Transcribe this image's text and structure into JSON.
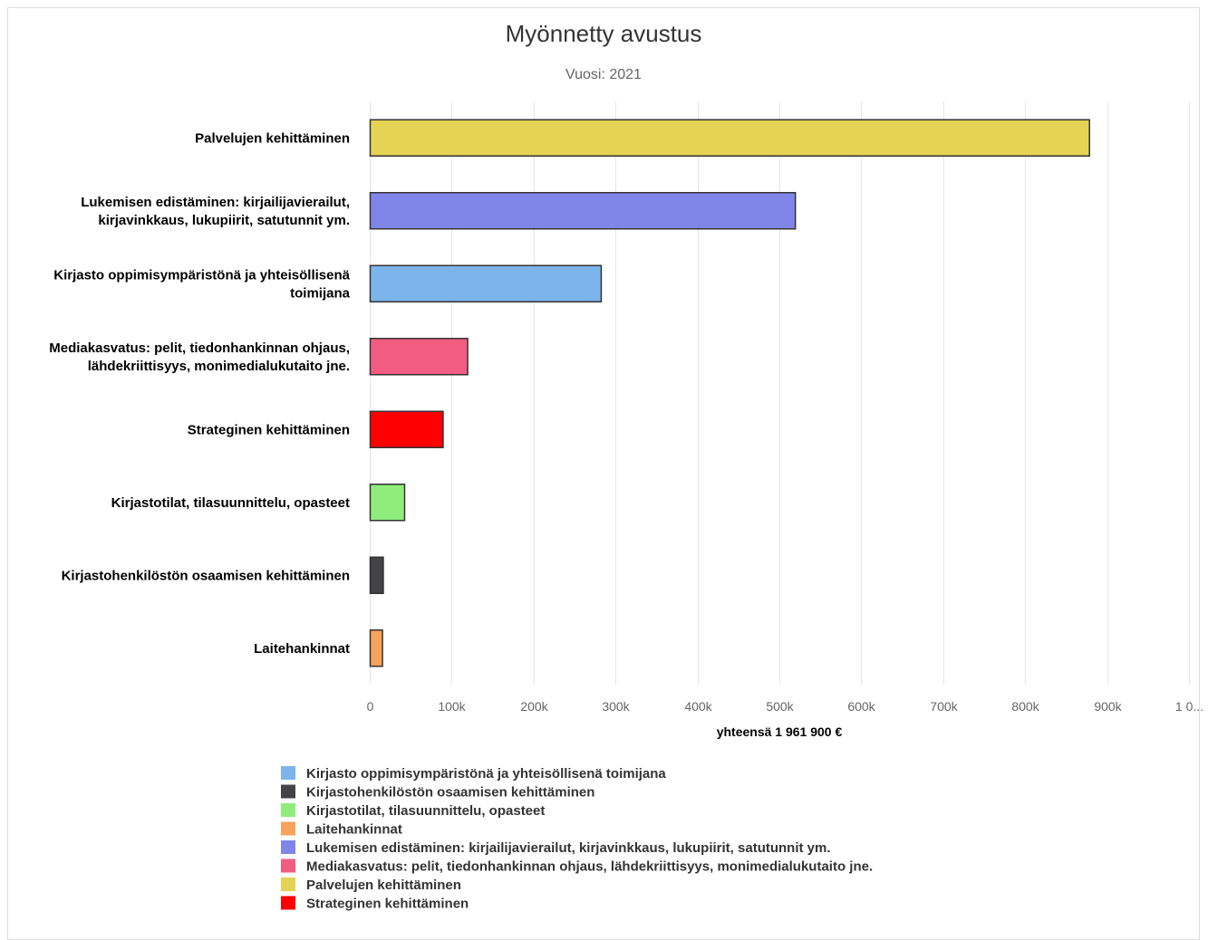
{
  "chart_data": {
    "type": "bar",
    "orientation": "horizontal",
    "title": "Myönnetty avustus",
    "subtitle": "Vuosi: 2021",
    "xlabel": "yhteensä 1 961 900 €",
    "xlim": [
      0,
      1000000
    ],
    "x_ticks": [
      "0",
      "100k",
      "200k",
      "300k",
      "400k",
      "500k",
      "600k",
      "700k",
      "800k",
      "900k",
      "1 0..."
    ],
    "grid": true,
    "legend_position": "bottom",
    "bars": [
      {
        "label": [
          "Palvelujen kehittäminen"
        ],
        "value": 878000,
        "color": "#e4d354"
      },
      {
        "label": [
          "Lukemisen edistäminen: kirjailijavierailut,",
          "kirjavinkkaus, lukupiirit, satutunnit ym."
        ],
        "value": 519000,
        "color": "#8085e9"
      },
      {
        "label": [
          "Kirjasto oppimisympäristönä ja yhteisöllisenä",
          "toimijana"
        ],
        "value": 282000,
        "color": "#7cb5ec"
      },
      {
        "label": [
          "Mediakasvatus: pelit, tiedonhankinnan ohjaus,",
          "lähdekriittisyys, monimedialukutaito jne."
        ],
        "value": 119000,
        "color": "#f15c80"
      },
      {
        "label": [
          "Strateginen kehittäminen"
        ],
        "value": 89000,
        "color": "#ff0000"
      },
      {
        "label": [
          "Kirjastotilat, tilasuunnittelu, opasteet"
        ],
        "value": 42000,
        "color": "#90ed7d"
      },
      {
        "label": [
          "Kirjastohenkilöstön osaamisen kehittäminen"
        ],
        "value": 16000,
        "color": "#434348"
      },
      {
        "label": [
          "Laitehankinnat"
        ],
        "value": 15000,
        "color": "#f7a35c"
      }
    ],
    "legend": [
      {
        "name": "Kirjasto oppimisympäristönä ja yhteisöllisenä toimijana",
        "color": "#7cb5ec"
      },
      {
        "name": "Kirjastohenkilöstön osaamisen kehittäminen",
        "color": "#434348"
      },
      {
        "name": "Kirjastotilat, tilasuunnittelu, opasteet",
        "color": "#90ed7d"
      },
      {
        "name": "Laitehankinnat",
        "color": "#f7a35c"
      },
      {
        "name": "Lukemisen edistäminen: kirjailijavierailut, kirjavinkkaus, lukupiirit, satutunnit ym.",
        "color": "#8085e9"
      },
      {
        "name": "Mediakasvatus: pelit, tiedonhankinnan ohjaus, lähdekriittisyys, monimedialukutaito jne.",
        "color": "#f15c80"
      },
      {
        "name": "Palvelujen kehittäminen",
        "color": "#e4d354"
      },
      {
        "name": "Strateginen kehittäminen",
        "color": "#ff0000"
      }
    ]
  }
}
